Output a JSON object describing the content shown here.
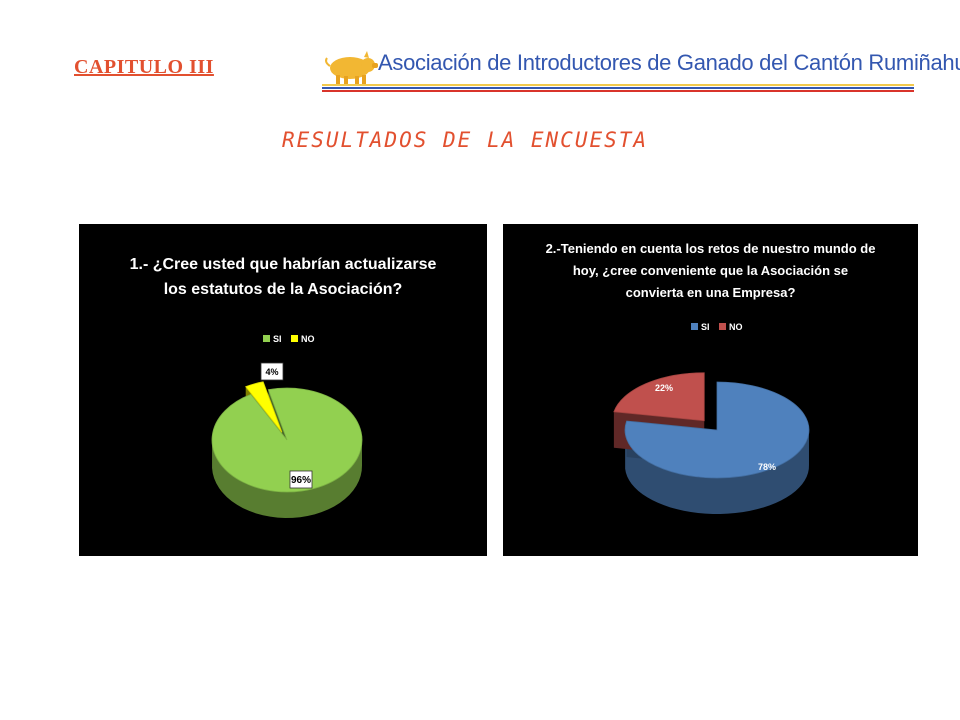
{
  "header": {
    "chapter": "CAPITULO III",
    "banner_text": "Asociación de Introductores de Ganado del Cantón Rumiñahui",
    "heading": "RESULTADOS DE LA ENCUESTA"
  },
  "colors": {
    "accent": "#e2502f",
    "banner_text": "#3357b0",
    "logo": "#f2b733"
  },
  "chart_data": [
    {
      "type": "pie",
      "title": "1.- ¿Cree usted que habrían actualizarse los estatutos de la Asociación?",
      "legend_position": "top",
      "categories": [
        "SI",
        "NO"
      ],
      "values": [
        96,
        4
      ],
      "labels": [
        "96%",
        "4%"
      ],
      "colors": [
        "#92d050",
        "#ffff00"
      ],
      "exploded": "NO"
    },
    {
      "type": "pie",
      "title": "2.-Teniendo en cuenta los retos de nuestro mundo de hoy, ¿cree conveniente que la Asociación se convierta en una Empresa?",
      "legend_position": "top",
      "categories": [
        "SI",
        "NO"
      ],
      "values": [
        78,
        22
      ],
      "labels": [
        "78%",
        "22%"
      ],
      "colors": [
        "#4f81bd",
        "#c0504d"
      ],
      "exploded": "NO"
    }
  ]
}
